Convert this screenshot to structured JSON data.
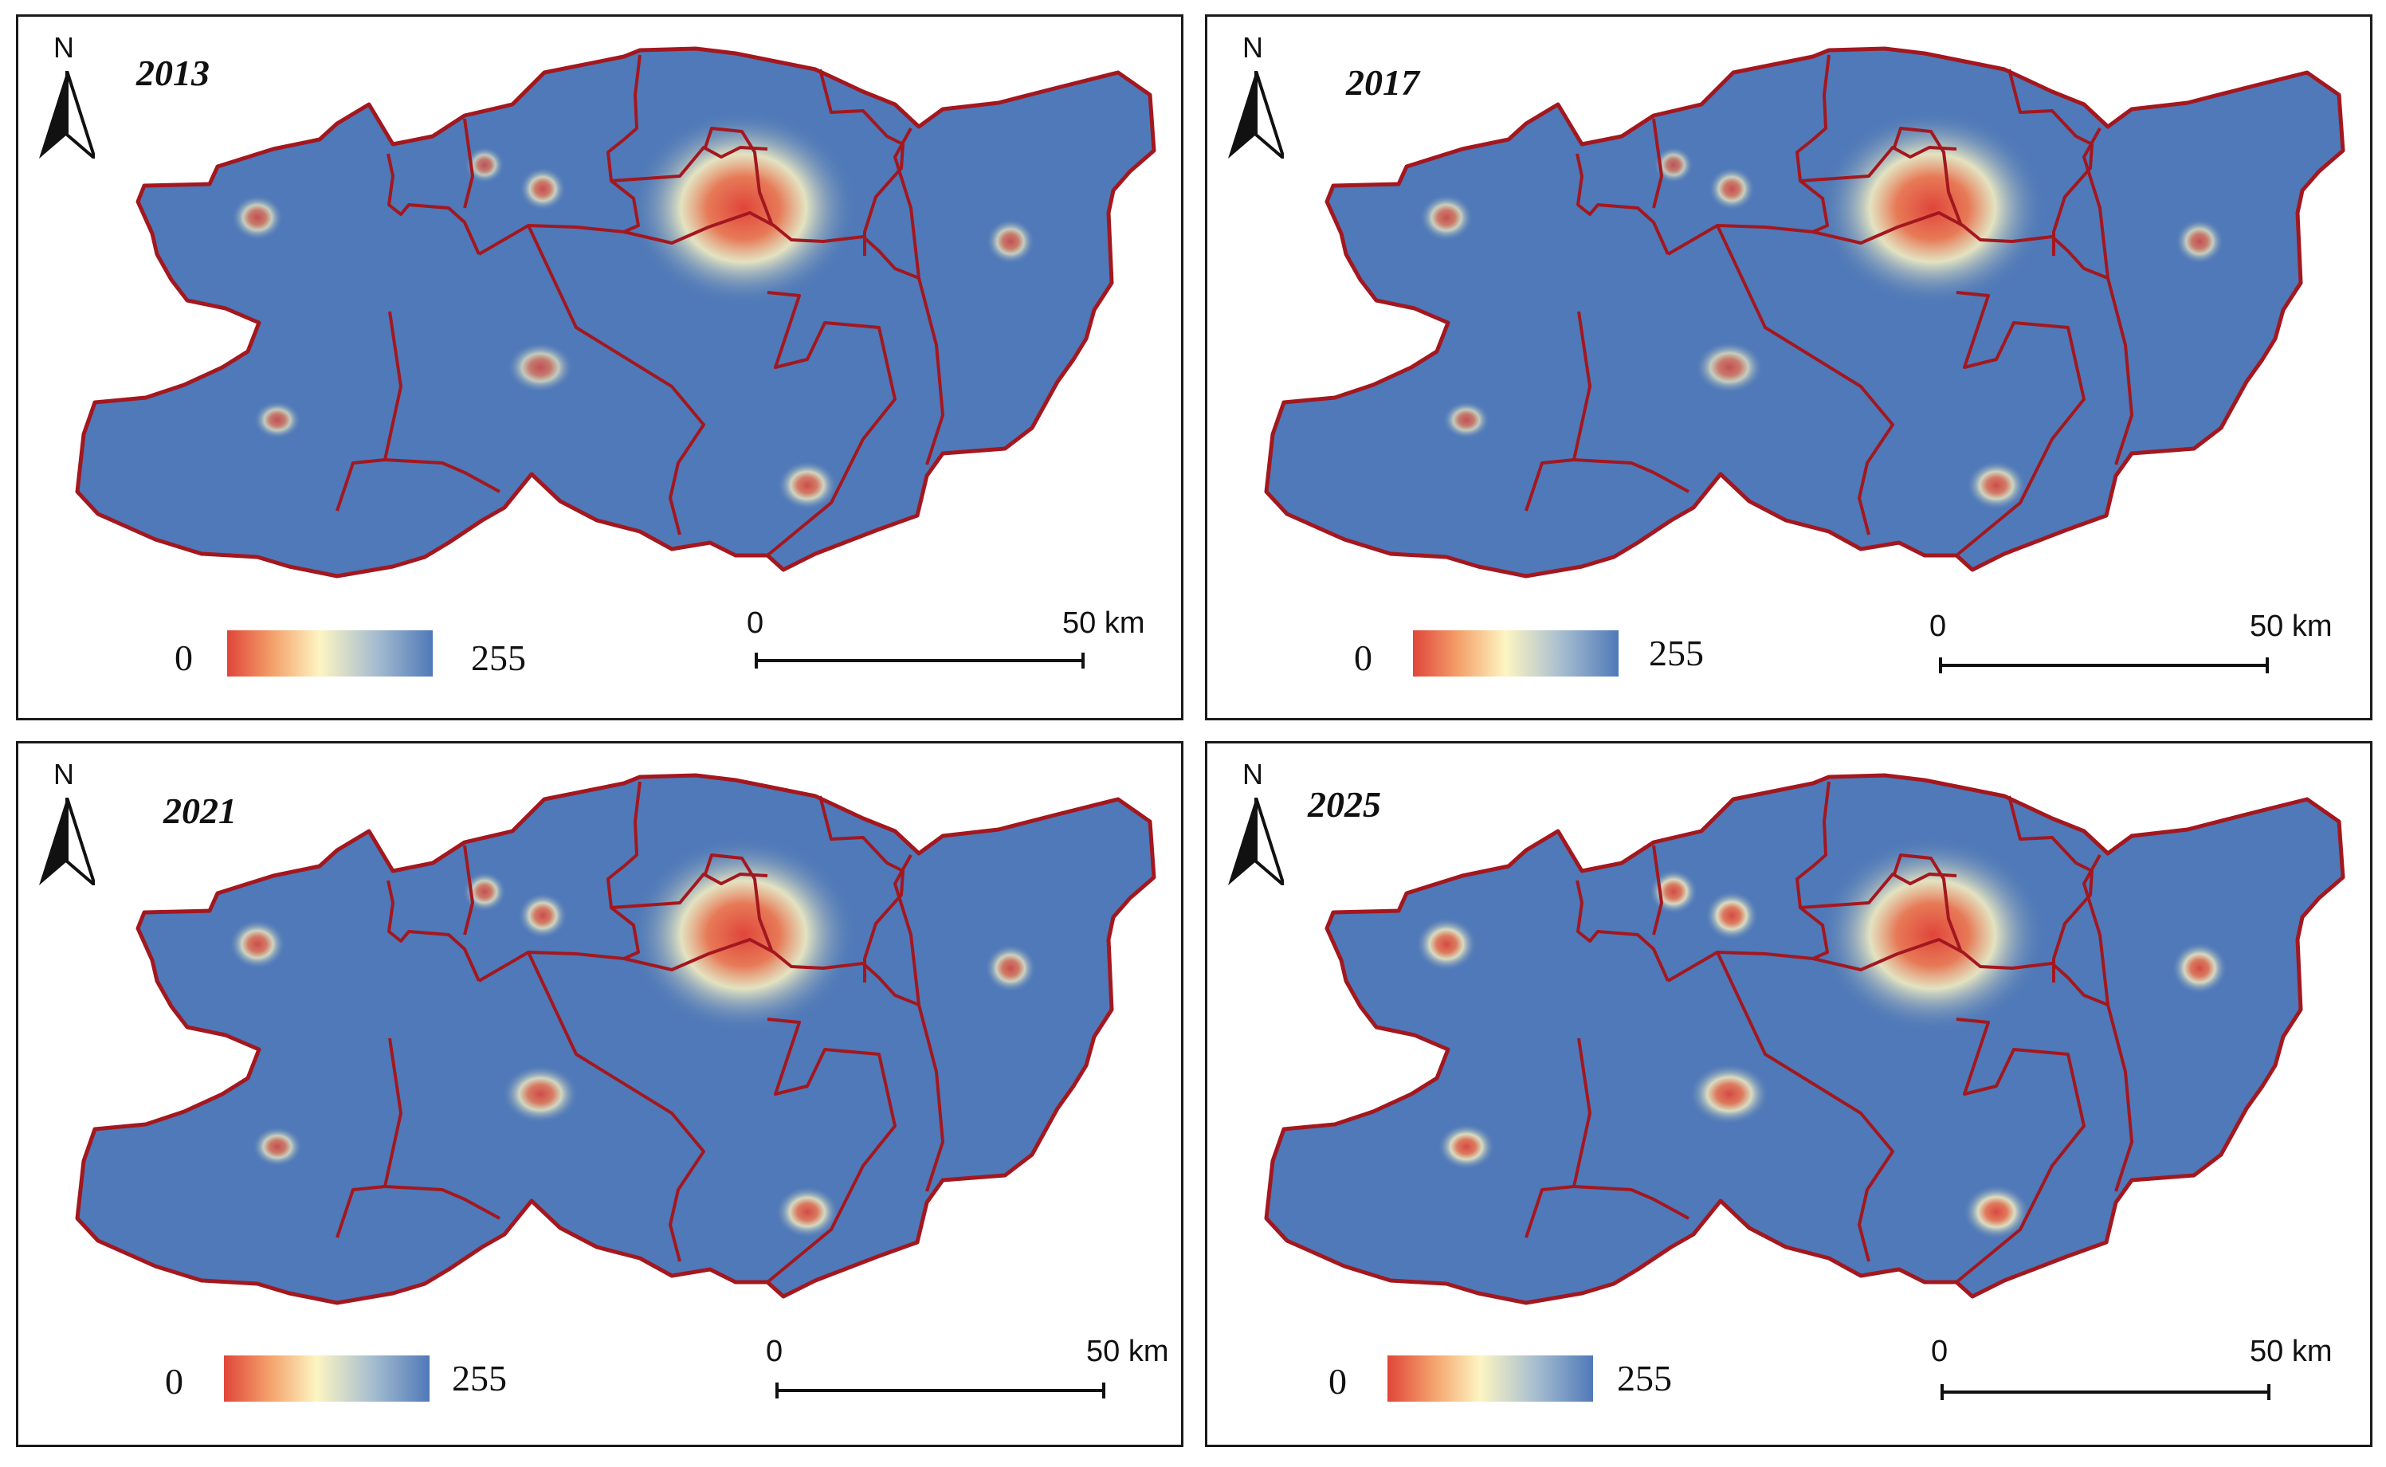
{
  "panels": [
    {
      "year": "2013",
      "legend": {
        "min": "0",
        "max": "255"
      },
      "scale": {
        "start": "0",
        "end": "50 km"
      },
      "north": "N",
      "hotspot_intensity": [
        1.0,
        0.55,
        0.6,
        0.45,
        0.5,
        0.55,
        0.5,
        0.7
      ]
    },
    {
      "year": "2017",
      "legend": {
        "min": "0",
        "max": "255"
      },
      "scale": {
        "start": "0",
        "end": "50 km"
      },
      "north": "N",
      "hotspot_intensity": [
        1.0,
        0.6,
        0.6,
        0.45,
        0.55,
        0.55,
        0.5,
        0.7
      ]
    },
    {
      "year": "2021",
      "legend": {
        "min": "0",
        "max": "255"
      },
      "scale": {
        "start": "0",
        "end": "50 km"
      },
      "north": "N",
      "hotspot_intensity": [
        1.0,
        0.7,
        0.7,
        0.6,
        0.75,
        0.65,
        0.6,
        0.8
      ]
    },
    {
      "year": "2025",
      "legend": {
        "min": "0",
        "max": "255"
      },
      "scale": {
        "start": "0",
        "end": "50 km"
      },
      "north": "N",
      "hotspot_intensity": [
        1.0,
        0.85,
        0.85,
        0.8,
        0.85,
        0.8,
        0.85,
        0.9
      ]
    }
  ],
  "colors": {
    "low": "#e0453a",
    "mid": "#fdf5c2",
    "high": "#4f79b8",
    "boundary": "#a3171f"
  }
}
